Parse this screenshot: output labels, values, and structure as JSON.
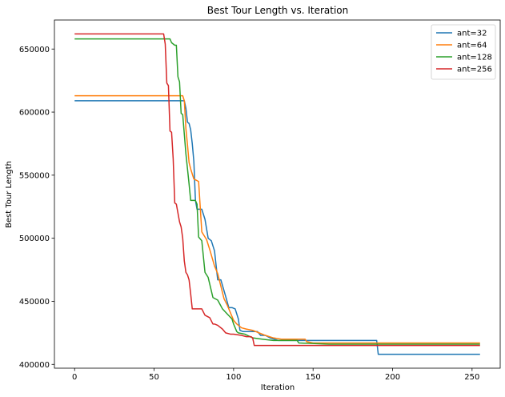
{
  "chart_data": {
    "type": "line",
    "title": "Best Tour Length vs. Iteration",
    "xlabel": "Iteration",
    "ylabel": "Best Tour Length",
    "xlim": [
      -12.7,
      267.7
    ],
    "ylim": [
      397000,
      673000
    ],
    "xticks": [
      0,
      50,
      100,
      150,
      200,
      250
    ],
    "yticks": [
      400000,
      450000,
      500000,
      550000,
      600000,
      650000
    ],
    "grid": false,
    "legend_position": "top-right",
    "series": [
      {
        "name": "ant=32",
        "color": "#1f77b4",
        "x": [
          0,
          69,
          70,
          71,
          72,
          73,
          74,
          75,
          76,
          77,
          80,
          82,
          84,
          86,
          88,
          90,
          92,
          95,
          97,
          99,
          101,
          103,
          104,
          106,
          110,
          115,
          117,
          120,
          123,
          128,
          133,
          140,
          145,
          150,
          158,
          190,
          191,
          255
        ],
        "y": [
          609000,
          609000,
          603000,
          592000,
          591000,
          586000,
          575000,
          561000,
          530000,
          523000,
          523000,
          515000,
          500000,
          498000,
          490000,
          467000,
          467000,
          454000,
          445000,
          445000,
          444000,
          436000,
          427000,
          426000,
          426000,
          426000,
          423000,
          423000,
          421000,
          419000,
          419000,
          419000,
          419000,
          419000,
          419000,
          419000,
          408000,
          408000
        ]
      },
      {
        "name": "ant=64",
        "color": "#ff7f0e",
        "x": [
          0,
          68,
          69,
          70,
          71,
          72,
          73,
          75,
          78,
          79,
          80,
          83,
          85,
          88,
          90,
          92,
          94,
          96,
          98,
          100,
          102,
          105,
          108,
          112,
          116,
          120,
          125,
          130,
          145,
          146,
          150,
          255
        ],
        "y": [
          613000,
          613000,
          609000,
          587000,
          574000,
          560000,
          555000,
          547000,
          545000,
          525000,
          505000,
          499000,
          491000,
          478000,
          472000,
          462000,
          452000,
          447000,
          441000,
          435000,
          432000,
          429000,
          428000,
          427000,
          425000,
          423000,
          421000,
          420000,
          420000,
          418000,
          417000,
          417000
        ]
      },
      {
        "name": "ant=128",
        "color": "#2ca02c",
        "x": [
          0,
          60,
          61,
          63,
          64,
          65,
          66,
          67,
          68,
          70,
          71,
          72,
          73,
          74,
          76,
          77,
          78,
          80,
          82,
          84,
          87,
          90,
          93,
          96,
          99,
          100,
          102,
          103,
          107,
          112,
          118,
          125,
          140,
          141,
          160,
          255
        ],
        "y": [
          658000,
          658000,
          655000,
          653000,
          653000,
          628000,
          624000,
          599000,
          598000,
          567000,
          555000,
          543000,
          530000,
          530000,
          530000,
          527000,
          501000,
          498000,
          473000,
          469000,
          453000,
          451000,
          444000,
          440000,
          436000,
          432000,
          426000,
          425000,
          424000,
          421000,
          420000,
          419000,
          419000,
          417000,
          416000,
          416000
        ]
      },
      {
        "name": "ant=256",
        "color": "#d62728",
        "x": [
          0,
          56,
          57,
          58,
          59,
          60,
          61,
          62,
          63,
          64,
          66,
          67,
          68,
          69,
          70,
          71,
          72,
          73,
          74,
          75,
          80,
          82,
          85,
          87,
          88,
          90,
          93,
          95,
          98,
          100,
          105,
          108,
          111,
          112,
          113,
          118,
          125,
          150,
          255
        ],
        "y": [
          662000,
          662000,
          654000,
          623000,
          621000,
          585000,
          584000,
          563000,
          528000,
          527000,
          513000,
          509000,
          500000,
          482000,
          473000,
          471000,
          467000,
          456000,
          444000,
          444000,
          444000,
          439000,
          437000,
          432000,
          432000,
          431000,
          428000,
          425000,
          424000,
          424000,
          423000,
          422000,
          422000,
          421000,
          415000,
          415000,
          415000,
          415000,
          415000
        ]
      }
    ]
  }
}
